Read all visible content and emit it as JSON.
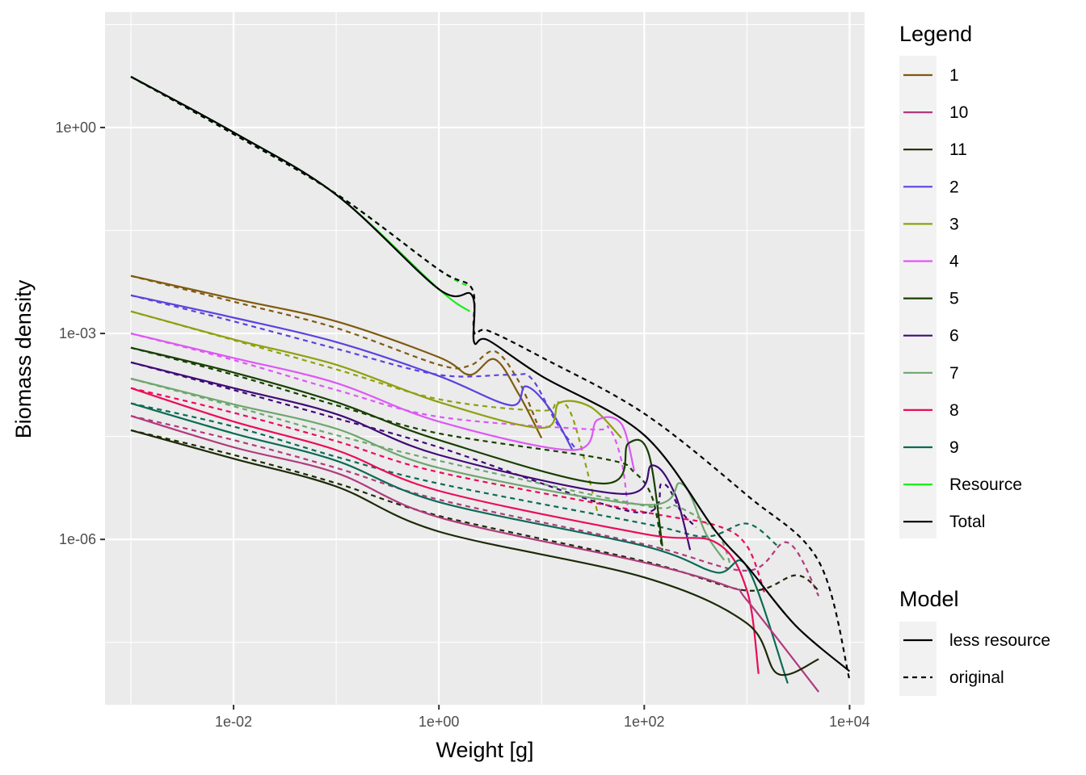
{
  "chart_data": {
    "type": "line",
    "xlabel": "Weight [g]",
    "ylabel": "Biomass density",
    "x_scale": "log10",
    "y_scale": "log10",
    "xlim": [
      0.00056,
      14000
    ],
    "ylim": [
      3.9e-09,
      48
    ],
    "x_ticks": [
      0.01,
      1,
      100,
      10000
    ],
    "x_tick_labels": [
      "1e-02",
      "1e+00",
      "1e+02",
      "1e+04"
    ],
    "y_ticks": [
      1e-06,
      0.001,
      1
    ],
    "y_tick_labels": [
      "1e-06",
      "1e-03",
      "1e+00"
    ],
    "grid": true,
    "legend_position": "right",
    "legend": {
      "title": "Legend",
      "entries": [
        {
          "name": "1",
          "color": "#7f5a0f"
        },
        {
          "name": "10",
          "color": "#b03a7e"
        },
        {
          "name": "11",
          "color": "#1c2a06"
        },
        {
          "name": "2",
          "color": "#5c42de"
        },
        {
          "name": "3",
          "color": "#8fa00f"
        },
        {
          "name": "4",
          "color": "#dd57f6"
        },
        {
          "name": "5",
          "color": "#173f00"
        },
        {
          "name": "6",
          "color": "#3f0a77"
        },
        {
          "name": "7",
          "color": "#6ea66e"
        },
        {
          "name": "8",
          "color": "#ea0c5a"
        },
        {
          "name": "9",
          "color": "#0a6b55"
        },
        {
          "name": "Resource",
          "color": "#1ced1c"
        },
        {
          "name": "Total",
          "color": "#000000"
        }
      ]
    },
    "linetype_legend": {
      "title": "Model",
      "entries": [
        {
          "name": "less resource",
          "dash": "solid"
        },
        {
          "name": "original",
          "dash": "dashed"
        }
      ]
    },
    "series": [
      {
        "name": "1",
        "model": "less resource",
        "color": "#7f5a0f",
        "points": [
          [
            0.001,
            0.0069
          ],
          [
            0.01,
            0.0032
          ],
          [
            0.1,
            0.0015
          ],
          [
            1,
            0.00045
          ],
          [
            2,
            0.00025
          ],
          [
            3.5,
            0.00042
          ],
          [
            6,
            0.00013
          ],
          [
            10,
            3e-05
          ]
        ]
      },
      {
        "name": "1",
        "model": "original",
        "color": "#7f5a0f",
        "points": [
          [
            0.001,
            0.0069
          ],
          [
            0.01,
            0.0029
          ],
          [
            0.1,
            0.0012
          ],
          [
            1,
            0.00035
          ],
          [
            2,
            0.00034
          ],
          [
            3.5,
            0.00055
          ],
          [
            6,
            0.0002
          ],
          [
            9,
            5e-05
          ]
        ]
      },
      {
        "name": "2",
        "model": "less resource",
        "color": "#5c42de",
        "points": [
          [
            0.001,
            0.0036
          ],
          [
            0.01,
            0.0017
          ],
          [
            0.1,
            0.00075
          ],
          [
            1,
            0.00024
          ],
          [
            5,
            9e-05
          ],
          [
            7,
            0.00017
          ],
          [
            12,
            8e-05
          ],
          [
            20,
            2e-05
          ]
        ]
      },
      {
        "name": "2",
        "model": "original",
        "color": "#5c42de",
        "points": [
          [
            0.001,
            0.0036
          ],
          [
            0.01,
            0.0015
          ],
          [
            0.1,
            0.0006
          ],
          [
            1,
            0.00025
          ],
          [
            5,
            0.00025
          ],
          [
            8,
            0.00022
          ],
          [
            14,
            5e-05
          ],
          [
            22,
            2e-05
          ]
        ]
      },
      {
        "name": "3",
        "model": "less resource",
        "color": "#8fa00f",
        "points": [
          [
            0.001,
            0.0021
          ],
          [
            0.01,
            0.00082
          ],
          [
            0.1,
            0.00035
          ],
          [
            1,
            0.0001
          ],
          [
            10,
            4.2e-05
          ],
          [
            15,
            9.8e-05
          ],
          [
            30,
            8.5e-05
          ],
          [
            60,
            3e-05
          ]
        ]
      },
      {
        "name": "3",
        "model": "original",
        "color": "#8fa00f",
        "points": [
          [
            0.001,
            0.0021
          ],
          [
            0.01,
            0.0008
          ],
          [
            0.1,
            0.0003
          ],
          [
            1,
            0.00011
          ],
          [
            10,
            7.5e-05
          ],
          [
            14,
            0.0001
          ],
          [
            20,
            6e-05
          ],
          [
            35,
            2.5e-06
          ]
        ]
      },
      {
        "name": "4",
        "model": "less resource",
        "color": "#dd57f6",
        "points": [
          [
            0.001,
            0.001
          ],
          [
            0.01,
            0.00044
          ],
          [
            0.1,
            0.00019
          ],
          [
            1,
            5.2e-05
          ],
          [
            20,
            2e-05
          ],
          [
            35,
            5.5e-05
          ],
          [
            60,
            4.8e-05
          ],
          [
            80,
            1e-05
          ]
        ]
      },
      {
        "name": "4",
        "model": "original",
        "color": "#dd57f6",
        "points": [
          [
            0.001,
            0.001
          ],
          [
            0.01,
            0.00041
          ],
          [
            0.1,
            0.00015
          ],
          [
            1,
            6.1e-05
          ],
          [
            30,
            4e-05
          ],
          [
            45,
            4.2e-05
          ],
          [
            60,
            1.4e-05
          ],
          [
            70,
            2.5e-06
          ]
        ]
      },
      {
        "name": "5",
        "model": "less resource",
        "color": "#173f00",
        "points": [
          [
            0.001,
            0.00062
          ],
          [
            0.01,
            0.00027
          ],
          [
            0.1,
            0.0001
          ],
          [
            1,
            2.8e-05
          ],
          [
            40,
            6.5e-06
          ],
          [
            70,
            2.5e-05
          ],
          [
            110,
            1.8e-05
          ],
          [
            150,
            8e-07
          ]
        ]
      },
      {
        "name": "5",
        "model": "original",
        "color": "#173f00",
        "points": [
          [
            0.001,
            0.00062
          ],
          [
            0.01,
            0.00025
          ],
          [
            0.1,
            9e-05
          ],
          [
            1,
            3.5e-05
          ],
          [
            40,
            1.5e-05
          ],
          [
            80,
            9.5e-06
          ],
          [
            120,
            4e-06
          ],
          [
            150,
            7e-07
          ]
        ]
      },
      {
        "name": "6",
        "model": "less resource",
        "color": "#3f0a77",
        "points": [
          [
            0.001,
            0.00038
          ],
          [
            0.01,
            0.00016
          ],
          [
            0.1,
            6.7e-05
          ],
          [
            1,
            1.7e-05
          ],
          [
            60,
            4.6e-06
          ],
          [
            120,
            1.2e-05
          ],
          [
            200,
            4.5e-06
          ],
          [
            280,
            7e-07
          ]
        ]
      },
      {
        "name": "6",
        "model": "original",
        "color": "#3f0a77",
        "points": [
          [
            0.001,
            0.00038
          ],
          [
            0.01,
            0.00015
          ],
          [
            0.1,
            5.8e-05
          ],
          [
            1,
            2.2e-05
          ],
          [
            80,
            2.5e-06
          ],
          [
            150,
            6.5e-06
          ],
          [
            230,
            2.5e-06
          ],
          [
            320,
            1.5e-06
          ]
        ]
      },
      {
        "name": "7",
        "model": "less resource",
        "color": "#6ea66e",
        "points": [
          [
            0.001,
            0.00022
          ],
          [
            0.01,
            9.3e-05
          ],
          [
            0.1,
            4.1e-05
          ],
          [
            1,
            1.1e-05
          ],
          [
            100,
            3.2e-06
          ],
          [
            230,
            6.5e-06
          ],
          [
            400,
            1.2e-06
          ],
          [
            600,
            5e-07
          ]
        ]
      },
      {
        "name": "7",
        "model": "original",
        "color": "#6ea66e",
        "points": [
          [
            0.001,
            0.00022
          ],
          [
            0.01,
            8.7e-05
          ],
          [
            0.1,
            3.3e-05
          ],
          [
            1,
            1.4e-05
          ],
          [
            100,
            3.1e-06
          ],
          [
            200,
            3.1e-06
          ],
          [
            500,
            1.3e-06
          ],
          [
            700,
            4e-07
          ]
        ]
      },
      {
        "name": "8",
        "model": "less resource",
        "color": "#ea0c5a",
        "points": [
          [
            0.001,
            0.00016
          ],
          [
            0.01,
            5.2e-05
          ],
          [
            0.1,
            2e-05
          ],
          [
            1,
            5.1e-06
          ],
          [
            100,
            1.2e-06
          ],
          [
            500,
            9e-07
          ],
          [
            1000,
            1.8e-07
          ],
          [
            1300,
            1.1e-08
          ]
        ]
      },
      {
        "name": "8",
        "model": "original",
        "color": "#ea0c5a",
        "points": [
          [
            0.001,
            0.00016
          ],
          [
            0.01,
            7e-05
          ],
          [
            0.1,
            2.7e-05
          ],
          [
            1,
            9.5e-06
          ],
          [
            100,
            2.5e-06
          ],
          [
            500,
            1.6e-06
          ],
          [
            1000,
            8e-07
          ],
          [
            1500,
            1.6e-07
          ]
        ]
      },
      {
        "name": "9",
        "model": "less resource",
        "color": "#0a6b55",
        "points": [
          [
            0.001,
            9.6e-05
          ],
          [
            0.01,
            3.5e-05
          ],
          [
            0.1,
            1.4e-05
          ],
          [
            1,
            3.5e-06
          ],
          [
            100,
            8e-07
          ],
          [
            500,
            3.3e-07
          ],
          [
            1000,
            4e-07
          ],
          [
            2500,
            8e-09
          ]
        ]
      },
      {
        "name": "9",
        "model": "original",
        "color": "#0a6b55",
        "points": [
          [
            0.001,
            9.6e-05
          ],
          [
            0.01,
            4.4e-05
          ],
          [
            0.1,
            1.6e-05
          ],
          [
            1,
            6.5e-06
          ],
          [
            100,
            1.7e-06
          ],
          [
            400,
            1.1e-06
          ],
          [
            1000,
            1.7e-06
          ],
          [
            2000,
            8e-07
          ]
        ]
      },
      {
        "name": "10",
        "model": "less resource",
        "color": "#b03a7e",
        "points": [
          [
            0.001,
            6.3e-05
          ],
          [
            0.01,
            2.2e-05
          ],
          [
            0.1,
            9.3e-06
          ],
          [
            1,
            2.1e-06
          ],
          [
            100,
            4.6e-07
          ],
          [
            700,
            2e-07
          ],
          [
            1000,
            1.3e-07
          ],
          [
            5000,
            6e-09
          ]
        ]
      },
      {
        "name": "10",
        "model": "original",
        "color": "#b03a7e",
        "points": [
          [
            0.001,
            6.3e-05
          ],
          [
            0.01,
            2.8e-05
          ],
          [
            0.1,
            1.1e-05
          ],
          [
            1,
            3.8e-06
          ],
          [
            100,
            8.5e-07
          ],
          [
            1000,
            3.5e-07
          ],
          [
            2500,
            9e-07
          ],
          [
            5000,
            1.5e-07
          ]
        ]
      },
      {
        "name": "11",
        "model": "less resource",
        "color": "#1c2a06",
        "points": [
          [
            0.001,
            3.9e-05
          ],
          [
            0.01,
            1.5e-05
          ],
          [
            0.1,
            5.9e-06
          ],
          [
            1,
            1.3e-06
          ],
          [
            100,
            2.8e-07
          ],
          [
            1000,
            6e-08
          ],
          [
            2000,
            1.1e-08
          ],
          [
            5000,
            1.8e-08
          ]
        ]
      },
      {
        "name": "11",
        "model": "original",
        "color": "#1c2a06",
        "points": [
          [
            0.001,
            3.9e-05
          ],
          [
            0.01,
            1.7e-05
          ],
          [
            0.1,
            6.6e-06
          ],
          [
            1,
            2.2e-06
          ],
          [
            100,
            4.8e-07
          ],
          [
            1000,
            1.8e-07
          ],
          [
            3000,
            3e-07
          ],
          [
            5000,
            1.8e-07
          ]
        ]
      },
      {
        "name": "Resource",
        "model": "less resource",
        "color": "#1ced1c",
        "points": [
          [
            0.001,
            5.5
          ],
          [
            0.01,
            0.85
          ],
          [
            0.1,
            0.105
          ],
          [
            1,
            0.0044
          ],
          [
            2,
            0.0021
          ]
        ]
      },
      {
        "name": "Resource",
        "model": "original",
        "color": "#1ced1c",
        "points": [
          [
            0.001,
            5.5
          ],
          [
            0.01,
            0.8
          ],
          [
            0.1,
            0.108
          ],
          [
            1,
            0.0085
          ],
          [
            2,
            0.0048
          ]
        ]
      },
      {
        "name": "Total",
        "model": "less resource",
        "color": "#000000",
        "points": [
          [
            0.001,
            5.5
          ],
          [
            0.01,
            0.85
          ],
          [
            0.1,
            0.105
          ],
          [
            1,
            0.0044
          ],
          [
            2.1,
            0.0036
          ],
          [
            2.2,
            0.00075
          ],
          [
            3,
            0.0008
          ],
          [
            10,
            0.00024
          ],
          [
            100,
            3.3e-05
          ],
          [
            500,
            1.3e-06
          ],
          [
            1000,
            4.1e-07
          ],
          [
            3000,
            5.5e-08
          ],
          [
            10000,
            1.2e-08
          ]
        ]
      },
      {
        "name": "Total",
        "model": "original",
        "color": "#000000",
        "points": [
          [
            0.001,
            5.5
          ],
          [
            0.01,
            0.8
          ],
          [
            0.1,
            0.108
          ],
          [
            1,
            0.0085
          ],
          [
            2.1,
            0.0045
          ],
          [
            2.2,
            0.00105
          ],
          [
            3,
            0.0011
          ],
          [
            10,
            0.00045
          ],
          [
            100,
            6.8e-05
          ],
          [
            1000,
            4.4e-06
          ],
          [
            5000,
            4.8e-07
          ],
          [
            10000,
            9e-09
          ]
        ]
      }
    ]
  }
}
